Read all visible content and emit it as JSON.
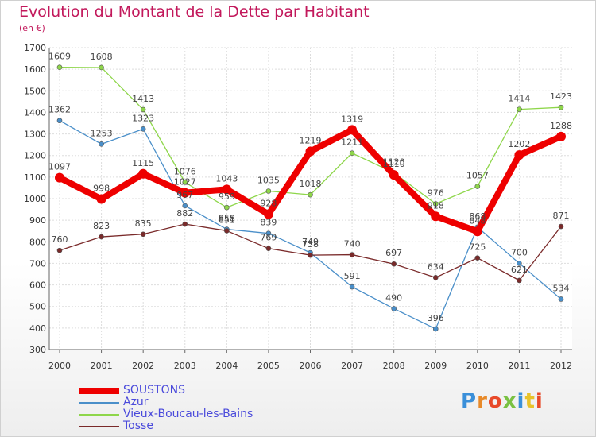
{
  "chart_data": {
    "type": "line",
    "title": "Evolution du Montant de la Dette par Habitant",
    "subtitle": "(en €)",
    "x": [
      "2000",
      "2001",
      "2002",
      "2003",
      "2004",
      "2005",
      "2006",
      "2007",
      "2008",
      "2009",
      "2010",
      "2011",
      "2012"
    ],
    "ylim": [
      300,
      1700
    ],
    "yticks": [
      300,
      400,
      500,
      600,
      700,
      800,
      900,
      1000,
      1100,
      1200,
      1300,
      1400,
      1500,
      1600,
      1700
    ],
    "grid": true,
    "legend_position": "bottom-left",
    "series": [
      {
        "name": "SOUSTONS",
        "color": "#ee0000",
        "values": [
          1097,
          998,
          1115,
          1027,
          1043,
          928,
          1219,
          1319,
          1110,
          918,
          848,
          1202,
          1288
        ]
      },
      {
        "name": "Azur",
        "color": "#4a8fc9",
        "values": [
          1362,
          1253,
          1323,
          967,
          858,
          839,
          749,
          591,
          490,
          396,
          868,
          700,
          534
        ]
      },
      {
        "name": "Vieux-Boucau-les-Bains",
        "color": "#8ed64a",
        "values": [
          1609,
          1608,
          1413,
          1076,
          959,
          1035,
          1018,
          1211,
          1120,
          976,
          1057,
          1414,
          1423
        ]
      },
      {
        "name": "Tosse",
        "color": "#7a2a2a",
        "values": [
          760,
          823,
          835,
          882,
          851,
          769,
          738,
          740,
          697,
          634,
          725,
          621,
          871
        ]
      }
    ]
  },
  "brand": {
    "letters": [
      "P",
      "r",
      "o",
      "x",
      "i",
      "t",
      "i"
    ],
    "colors": [
      "#3a8fd9",
      "#e88a2a",
      "#e84a2a",
      "#7ac142",
      "#3a8fd9",
      "#e8c22a",
      "#e84a2a"
    ]
  }
}
